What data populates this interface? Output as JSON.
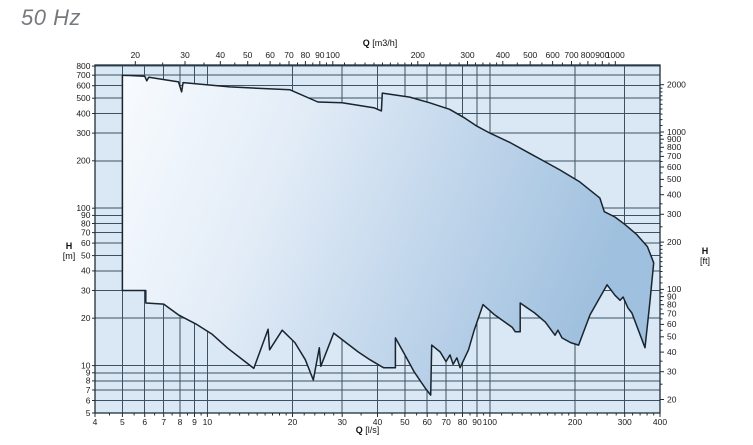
{
  "header": {
    "frequency": "50 Hz"
  },
  "chart_data": {
    "type": "area",
    "description": "Pump operating range envelope, head H versus flow Q, log-log scales",
    "legend": "none",
    "grid": "on",
    "axes": {
      "top": {
        "symbol": "Q",
        "unit": "[m3/h]",
        "scale": "log",
        "range": [
          18,
          440
        ],
        "values": [
          20,
          30,
          40,
          50,
          60,
          70,
          80,
          90,
          100,
          200,
          300,
          400,
          500,
          600,
          700,
          800,
          900,
          1000
        ],
        "minor": [
          25,
          35,
          45,
          55,
          65,
          75,
          85,
          95,
          110,
          120,
          130,
          140,
          150,
          160,
          170,
          180,
          190,
          220,
          240,
          260,
          280,
          320,
          340,
          360,
          380,
          450,
          550,
          650,
          750,
          850,
          950
        ]
      },
      "bottom": {
        "symbol": "Q",
        "unit": "[l/s]",
        "scale": "log",
        "range": [
          4,
          400
        ],
        "values": [
          4,
          5,
          6,
          7,
          8,
          9,
          10,
          20,
          30,
          40,
          50,
          60,
          70,
          80,
          90,
          100,
          200,
          300,
          400
        ],
        "minor": [
          4.5,
          5.5,
          6.5,
          7.5,
          8.5,
          9.5,
          11,
          12,
          13,
          14,
          15,
          16,
          17,
          18,
          19,
          22,
          24,
          26,
          28,
          35,
          45,
          55,
          65,
          75,
          85,
          95,
          110,
          120,
          130,
          140,
          150,
          160,
          170,
          180,
          190,
          220,
          240,
          260,
          280,
          320,
          340,
          360,
          380
        ]
      },
      "left": {
        "symbol": "H",
        "unit": "[m]",
        "scale": "log",
        "range": [
          5,
          815
        ],
        "values": [
          5,
          6,
          7,
          8,
          9,
          10,
          20,
          30,
          40,
          50,
          60,
          70,
          80,
          90,
          100,
          200,
          300,
          400,
          500,
          600,
          700,
          800
        ]
      },
      "right": {
        "symbol": "H",
        "unit": "[ft]",
        "scale": "log",
        "range": [
          16.4,
          2670
        ],
        "values": [
          20,
          30,
          40,
          50,
          60,
          70,
          80,
          90,
          100,
          200,
          300,
          400,
          500,
          600,
          700,
          800,
          900,
          1000,
          2000
        ],
        "minor": [
          25,
          35,
          45,
          55,
          65,
          75,
          85,
          95,
          110,
          120,
          130,
          140,
          150,
          160,
          170,
          180,
          190,
          250,
          350,
          450,
          550,
          650,
          750,
          850,
          950,
          1100,
          1200,
          1300,
          1400,
          1500,
          1600,
          1700,
          1800,
          1900
        ]
      }
    },
    "gridlines": {
      "q_ls": [
        5,
        6,
        7,
        8,
        9,
        10,
        20,
        30,
        40,
        50,
        60,
        70,
        80,
        90,
        100,
        200,
        300
      ],
      "h_m": [
        6,
        7,
        8,
        9,
        10,
        20,
        30,
        40,
        50,
        60,
        70,
        80,
        90,
        100,
        200,
        300,
        400,
        500,
        600,
        700,
        800
      ]
    },
    "envelope_outline": [
      [
        5,
        30
      ],
      [
        5,
        700
      ],
      [
        6,
        690
      ],
      [
        6.1,
        645
      ],
      [
        6.2,
        680
      ],
      [
        7.9,
        635
      ],
      [
        8.1,
        548
      ],
      [
        8.2,
        628
      ],
      [
        12,
        590
      ],
      [
        19.6,
        565
      ],
      [
        24.6,
        473
      ],
      [
        30,
        468
      ],
      [
        39,
        434
      ],
      [
        41.3,
        415
      ],
      [
        41.6,
        539
      ],
      [
        52,
        508
      ],
      [
        61,
        468
      ],
      [
        72,
        425
      ],
      [
        81.6,
        373
      ],
      [
        90,
        332
      ],
      [
        100,
        300
      ],
      [
        118,
        261
      ],
      [
        139,
        222
      ],
      [
        157,
        197
      ],
      [
        177,
        175
      ],
      [
        208,
        147
      ],
      [
        245,
        116
      ],
      [
        254,
        95
      ],
      [
        277,
        88
      ],
      [
        300,
        79
      ],
      [
        331,
        68
      ],
      [
        361,
        57
      ],
      [
        380,
        45
      ],
      [
        368,
        25
      ],
      [
        354,
        13
      ],
      [
        318,
        21.6
      ],
      [
        308,
        23.3
      ],
      [
        296,
        27.3
      ],
      [
        289,
        26
      ],
      [
        277,
        28
      ],
      [
        260,
        32.6
      ],
      [
        226,
        21
      ],
      [
        206,
        13.5
      ],
      [
        193,
        14
      ],
      [
        180,
        15
      ],
      [
        174,
        16.8
      ],
      [
        170,
        15.6
      ],
      [
        157,
        18.9
      ],
      [
        144,
        21.6
      ],
      [
        128,
        25
      ],
      [
        128,
        16.4
      ],
      [
        123,
        16.4
      ],
      [
        120,
        17.5
      ],
      [
        113,
        18.9
      ],
      [
        104,
        21
      ],
      [
        94.5,
        24.4
      ],
      [
        88,
        16.8
      ],
      [
        84,
        12.6
      ],
      [
        78.4,
        9.7
      ],
      [
        76.4,
        11.2
      ],
      [
        74.1,
        10.2
      ],
      [
        72.2,
        11.7
      ],
      [
        69.9,
        10.6
      ],
      [
        66.7,
        12.2
      ],
      [
        62.2,
        13.5
      ],
      [
        61.7,
        6.5
      ],
      [
        59,
        7.2
      ],
      [
        54,
        9.1
      ],
      [
        50,
        11.7
      ],
      [
        46.3,
        15
      ],
      [
        46.3,
        9.7
      ],
      [
        42,
        9.7
      ],
      [
        37.6,
        10.9
      ],
      [
        34.2,
        12.2
      ],
      [
        30.8,
        14.1
      ],
      [
        28,
        16.1
      ],
      [
        25.2,
        9.9
      ],
      [
        24.9,
        13
      ],
      [
        23.7,
        8.1
      ],
      [
        22.2,
        10.9
      ],
      [
        20.4,
        14
      ],
      [
        18.4,
        16.8
      ],
      [
        16.6,
        12.6
      ],
      [
        16.4,
        17
      ],
      [
        14.6,
        9.6
      ],
      [
        13.6,
        10.6
      ],
      [
        11.8,
        12.9
      ],
      [
        10.4,
        15.8
      ],
      [
        9.1,
        18.4
      ],
      [
        7.9,
        21
      ],
      [
        7,
        24.6
      ],
      [
        6.05,
        25
      ],
      [
        6.05,
        30
      ]
    ],
    "colors": {
      "plot_bg": "#d9e8f4",
      "grid": "#3d5261",
      "frame": "#1f2f3a",
      "outline": "#18242e",
      "fill_stops": [
        "#f8fbfe",
        "#e2ecf7",
        "#bbd2e9",
        "#9fc0de"
      ],
      "text": "#1a1a1a",
      "frequency_color": "#76797d"
    }
  }
}
